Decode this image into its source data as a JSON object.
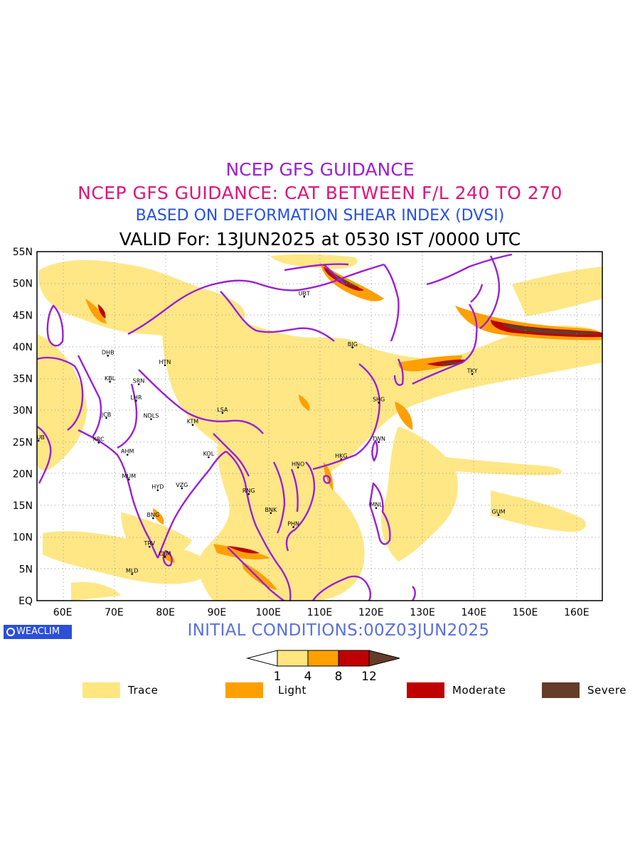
{
  "titles": {
    "line1": "NCEP GFS GUIDANCE",
    "line2": "NCEP GFS GUIDANCE: CAT BETWEEN F/L 240 TO 270",
    "line3": "BASED ON DEFORMATION SHEAR INDEX (DVSI)",
    "line4": "VALID For: 13JUN2025 at 0530 IST /0000 UTC"
  },
  "initial_conditions": "INITIAL CONDITIONS:00Z03JUN2025",
  "logo": "WEACLIM",
  "map": {
    "extent": {
      "lon_min": 55,
      "lon_max": 165,
      "lat_min": 0,
      "lat_max": 55
    },
    "lat_labels": [
      "55N",
      "50N",
      "45N",
      "40N",
      "35N",
      "30N",
      "25N",
      "20N",
      "15N",
      "10N",
      "5N",
      "EQ"
    ],
    "lon_labels": [
      "60E",
      "70E",
      "80E",
      "90E",
      "100E",
      "110E",
      "120E",
      "130E",
      "140E",
      "150E",
      "160E"
    ],
    "stations": [
      {
        "code": "UBT",
        "lon": 107,
        "lat": 47.9
      },
      {
        "code": "BJG",
        "lon": 116.4,
        "lat": 39.9
      },
      {
        "code": "TKY",
        "lon": 139.7,
        "lat": 35.7
      },
      {
        "code": "DHB",
        "lon": 68.8,
        "lat": 38.6
      },
      {
        "code": "HTN",
        "lon": 79.9,
        "lat": 37.1
      },
      {
        "code": "KBL",
        "lon": 69.2,
        "lat": 34.5
      },
      {
        "code": "SRN",
        "lon": 74.8,
        "lat": 34.1
      },
      {
        "code": "LHR",
        "lon": 74.3,
        "lat": 31.5
      },
      {
        "code": "SHG",
        "lon": 121.5,
        "lat": 31.2
      },
      {
        "code": "LSA",
        "lon": 91.1,
        "lat": 29.6
      },
      {
        "code": "JCB",
        "lon": 68.5,
        "lat": 28.8
      },
      {
        "code": "NDLS",
        "lon": 77.2,
        "lat": 28.6
      },
      {
        "code": "KTM",
        "lon": 85.3,
        "lat": 27.7
      },
      {
        "code": "DUB",
        "lon": 55.3,
        "lat": 25.2
      },
      {
        "code": "KRC",
        "lon": 67,
        "lat": 24.9
      },
      {
        "code": "TWN",
        "lon": 121.5,
        "lat": 25
      },
      {
        "code": "AHM",
        "lon": 72.6,
        "lat": 23
      },
      {
        "code": "KOL",
        "lon": 88.4,
        "lat": 22.6
      },
      {
        "code": "HKG",
        "lon": 114.2,
        "lat": 22.3
      },
      {
        "code": "HNO",
        "lon": 105.8,
        "lat": 21
      },
      {
        "code": "MUM",
        "lon": 72.9,
        "lat": 19.1
      },
      {
        "code": "HYD",
        "lon": 78.5,
        "lat": 17.4
      },
      {
        "code": "VZG",
        "lon": 83.2,
        "lat": 17.7
      },
      {
        "code": "RNG",
        "lon": 96.2,
        "lat": 16.8
      },
      {
        "code": "MNL",
        "lon": 121,
        "lat": 14.6
      },
      {
        "code": "BNK",
        "lon": 100.5,
        "lat": 13.8
      },
      {
        "code": "GUM",
        "lon": 144.8,
        "lat": 13.5
      },
      {
        "code": "BNG",
        "lon": 77.6,
        "lat": 13
      },
      {
        "code": "PHN",
        "lon": 104.9,
        "lat": 11.6
      },
      {
        "code": "TRV",
        "lon": 76.9,
        "lat": 8.5
      },
      {
        "code": "CLM",
        "lon": 79.9,
        "lat": 6.9
      },
      {
        "code": "MLD",
        "lon": 73.5,
        "lat": 4.2
      }
    ]
  },
  "colorbar": {
    "ticks": [
      "1",
      "4",
      "8",
      "12"
    ],
    "colors": [
      "#ffffff",
      "#ffe680",
      "#ffa000",
      "#c00000",
      "#643c28"
    ]
  },
  "legend": [
    {
      "label": "Trace",
      "color": "#ffe680"
    },
    {
      "label": "Light",
      "color": "#ffa000"
    },
    {
      "label": "Moderate",
      "color": "#c00000"
    },
    {
      "label": "Severe",
      "color": "#643c28"
    }
  ]
}
